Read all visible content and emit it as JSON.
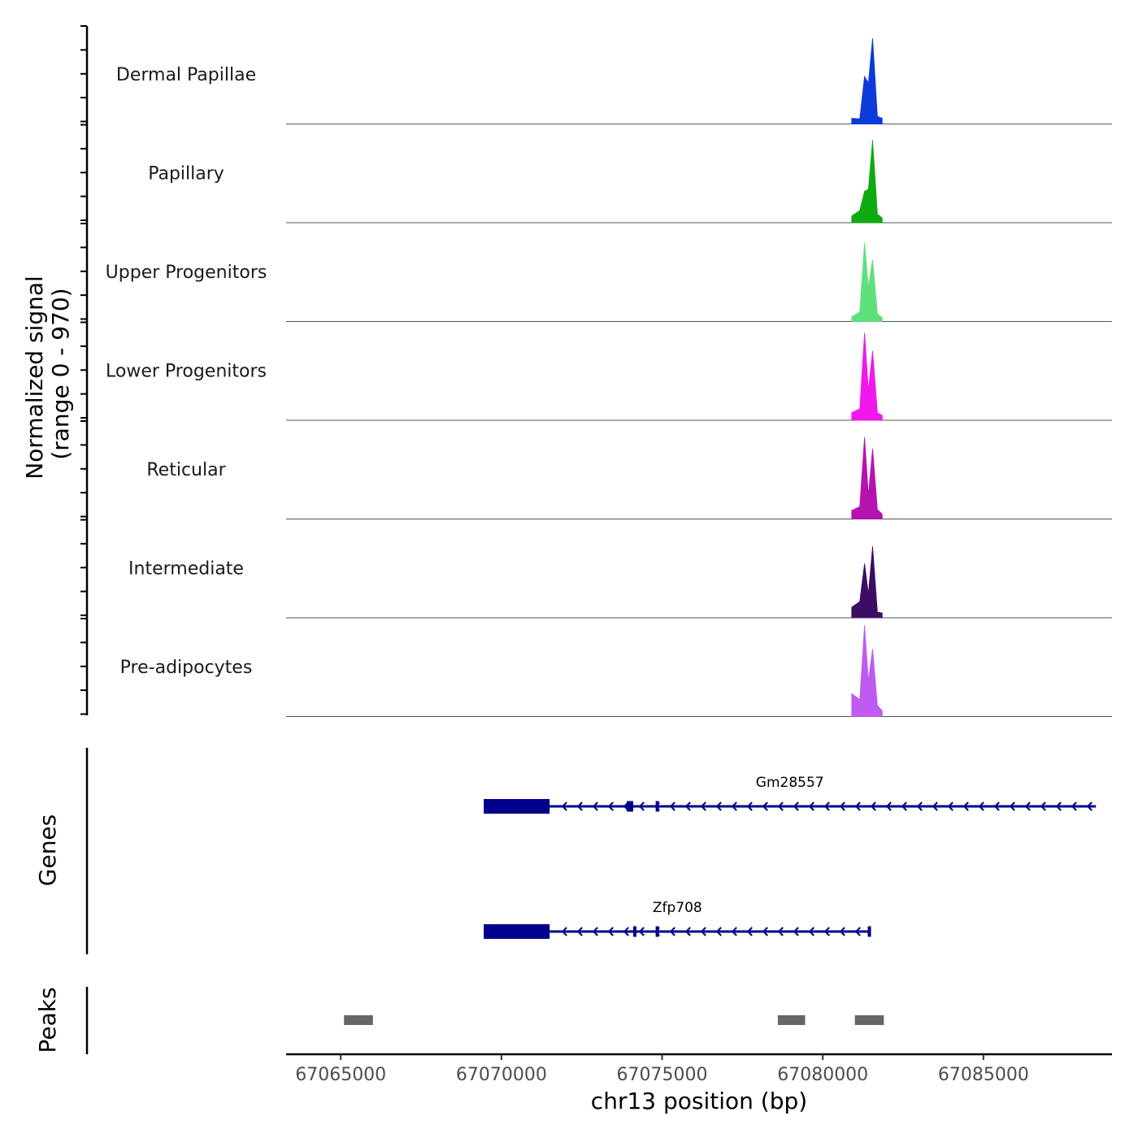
{
  "chart_data": {
    "type": "area",
    "chromosome": "chr13",
    "x_range": [
      67063300,
      67089000
    ],
    "y_range": [
      0,
      970
    ],
    "ylabel_line1": "Normalized signal",
    "ylabel_line2": "(range 0 - 970)",
    "xlabel": "chr13 position (bp)",
    "x_ticks": [
      {
        "value": 67065000,
        "label": "67065000"
      },
      {
        "value": 67070000,
        "label": "67070000"
      },
      {
        "value": 67075000,
        "label": "67075000"
      },
      {
        "value": 67080000,
        "label": "67080000"
      },
      {
        "value": 67085000,
        "label": "67085000"
      }
    ],
    "series": [
      {
        "name": "Dermal Papillae",
        "color": "#0a3ad8",
        "points": [
          [
            67080900,
            60
          ],
          [
            67081150,
            55
          ],
          [
            67081300,
            500
          ],
          [
            67081420,
            430
          ],
          [
            67081550,
            900
          ],
          [
            67081700,
            80
          ],
          [
            67081850,
            60
          ]
        ]
      },
      {
        "name": "Papillary",
        "color": "#0faa0f",
        "points": [
          [
            67080900,
            70
          ],
          [
            67081150,
            130
          ],
          [
            67081300,
            330
          ],
          [
            67081420,
            350
          ],
          [
            67081550,
            870
          ],
          [
            67081700,
            90
          ],
          [
            67081850,
            50
          ]
        ]
      },
      {
        "name": "Upper Progenitors",
        "color": "#5ee07a",
        "points": [
          [
            67080900,
            50
          ],
          [
            67081150,
            100
          ],
          [
            67081300,
            830
          ],
          [
            67081420,
            360
          ],
          [
            67081550,
            650
          ],
          [
            67081700,
            80
          ],
          [
            67081850,
            40
          ]
        ]
      },
      {
        "name": "Lower Progenitors",
        "color": "#f018ea",
        "points": [
          [
            67080900,
            80
          ],
          [
            67081150,
            120
          ],
          [
            67081300,
            920
          ],
          [
            67081420,
            320
          ],
          [
            67081550,
            730
          ],
          [
            67081700,
            80
          ],
          [
            67081850,
            50
          ]
        ]
      },
      {
        "name": "Reticular",
        "color": "#b513ad",
        "points": [
          [
            67080900,
            90
          ],
          [
            67081150,
            130
          ],
          [
            67081300,
            860
          ],
          [
            67081420,
            250
          ],
          [
            67081550,
            740
          ],
          [
            67081700,
            100
          ],
          [
            67081850,
            50
          ]
        ]
      },
      {
        "name": "Intermediate",
        "color": "#3c0e63",
        "points": [
          [
            67080900,
            110
          ],
          [
            67081150,
            170
          ],
          [
            67081300,
            570
          ],
          [
            67081420,
            250
          ],
          [
            67081550,
            750
          ],
          [
            67081700,
            60
          ],
          [
            67081850,
            50
          ]
        ]
      },
      {
        "name": "Pre-adipocytes",
        "color": "#c05bf2",
        "points": [
          [
            67080900,
            240
          ],
          [
            67081150,
            180
          ],
          [
            67081300,
            960
          ],
          [
            67081420,
            380
          ],
          [
            67081550,
            710
          ],
          [
            67081700,
            120
          ],
          [
            67081850,
            60
          ]
        ]
      }
    ],
    "genes": [
      {
        "name": "Gm28557",
        "start": 67069450,
        "end": 67088500,
        "strand": "-",
        "color": "#00008b",
        "exons": [
          [
            67069450,
            67071500
          ],
          [
            67073900,
            67074100
          ],
          [
            67074800,
            67074900
          ]
        ]
      },
      {
        "name": "Zfp708",
        "start": 67069450,
        "end": 67081500,
        "strand": "-",
        "color": "#00008b",
        "exons": [
          [
            67069450,
            67071500
          ],
          [
            67074100,
            67074180
          ],
          [
            67074800,
            67074900
          ],
          [
            67081400,
            67081450
          ]
        ]
      }
    ],
    "peaks_track_label": "Peaks",
    "genes_track_label": "Genes",
    "peaks": [
      {
        "start": 67065100,
        "end": 67066000
      },
      {
        "start": 67078600,
        "end": 67079450
      },
      {
        "start": 67081000,
        "end": 67081900
      }
    ],
    "peak_color": "#666666"
  }
}
